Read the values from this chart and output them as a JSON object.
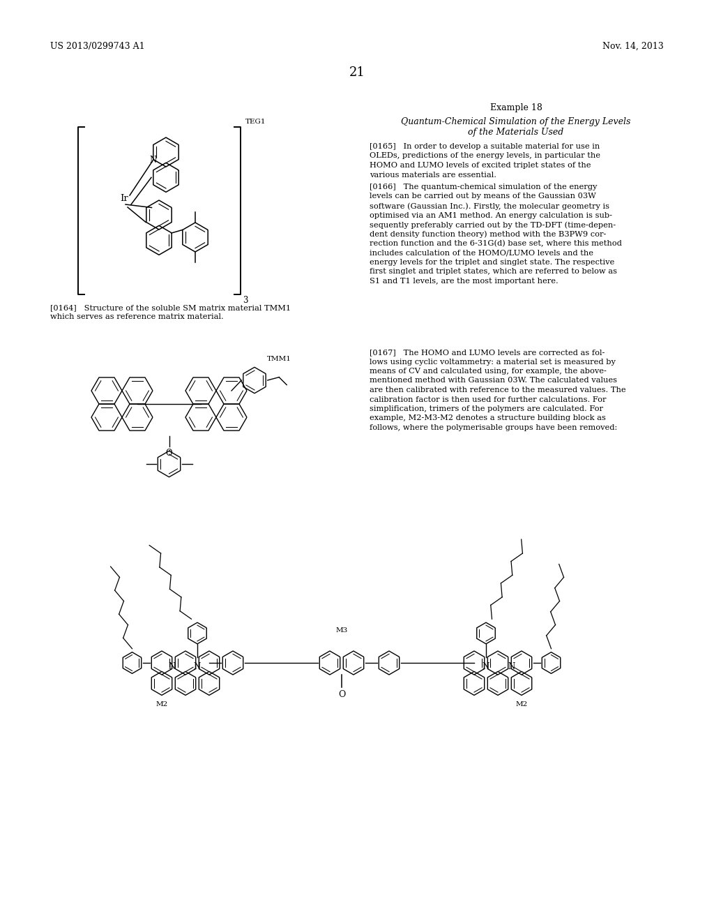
{
  "page_header_left": "US 2013/0299743 A1",
  "page_header_right": "Nov. 14, 2013",
  "page_number": "21",
  "section_title": "Example 18",
  "subtitle1": "Quantum-Chemical Simulation of the Energy Levels",
  "subtitle2": "of the Materials Used",
  "label_teg1": "TEG1",
  "label_tmm1": "TMM1",
  "label_m2_left": "M2",
  "label_m2_right": "M2",
  "label_m3": "M3",
  "caption_164_1": "[0164]   Structure of the soluble SM matrix material TMM1",
  "caption_164_2": "which serves as reference matrix material.",
  "para_165": [
    "[0165]   In order to develop a suitable material for use in",
    "OLEDs, predictions of the energy levels, in particular the",
    "HOMO and LUMO levels of excited triplet states of the",
    "various materials are essential."
  ],
  "para_166": [
    "[0166]   The quantum-chemical simulation of the energy",
    "levels can be carried out by means of the Gaussian 03W",
    "software (Gaussian Inc.). Firstly, the molecular geometry is",
    "optimised via an AM1 method. An energy calculation is sub-",
    "sequently preferably carried out by the TD-DFT (time-depen-",
    "dent density function theory) method with the B3PW9 cor-",
    "rection function and the 6-31G(d) base set, where this method",
    "includes calculation of the HOMO/LUMO levels and the",
    "energy levels for the triplet and singlet state. The respective",
    "first singlet and triplet states, which are referred to below as",
    "S1 and T1 levels, are the most important here."
  ],
  "para_167": [
    "[0167]   The HOMO and LUMO levels are corrected as fol-",
    "lows using cyclic voltammetry: a material set is measured by",
    "means of CV and calculated using, for example, the above-",
    "mentioned method with Gaussian 03W. The calculated values",
    "are then calibrated with reference to the measured values. The",
    "calibration factor is then used for further calculations. For",
    "simplification, trimers of the polymers are calculated. For",
    "example, M2-M3-M2 denotes a structure building block as",
    "follows, where the polymerisable groups have been removed:"
  ],
  "bg_color": "#ffffff",
  "text_color": "#000000"
}
